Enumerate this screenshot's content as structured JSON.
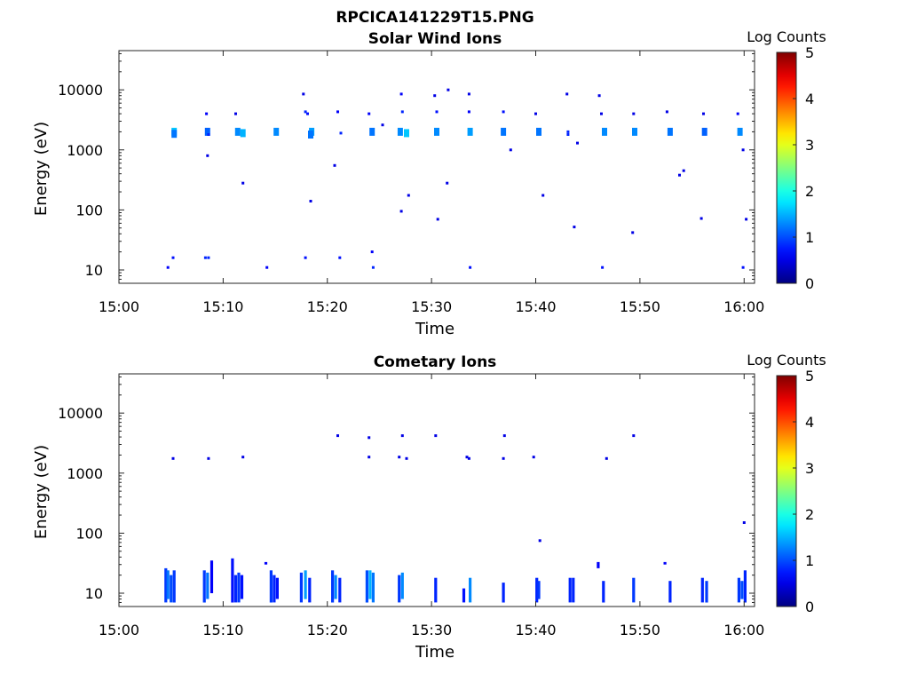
{
  "figure_title": "RPCICA141229T15.PNG",
  "colormap": "jet",
  "chart_data": [
    {
      "type": "heatmap",
      "title": "Solar Wind Ions",
      "xlabel": "Time",
      "ylabel": "Energy (eV)",
      "y_scale": "log",
      "xlim": [
        "15:00",
        "16:01"
      ],
      "ylim": [
        6,
        45000
      ],
      "x_ticks": [
        "15:00",
        "15:10",
        "15:20",
        "15:30",
        "15:40",
        "15:50",
        "16:00"
      ],
      "x_tick_minutes": [
        0,
        10,
        20,
        30,
        40,
        50,
        60
      ],
      "y_ticks": [
        "10",
        "100",
        "1000",
        "10000"
      ],
      "y_tick_values": [
        10,
        100,
        1000,
        10000
      ],
      "colorbar": {
        "label": "Log Counts",
        "ticks": [
          "0",
          "1",
          "2",
          "3",
          "4",
          "5"
        ],
        "range": [
          0,
          5
        ]
      },
      "points": [
        [
          5.3,
          2000,
          1.6
        ],
        [
          5.3,
          1850,
          1.2
        ],
        [
          8.5,
          2000,
          1.1
        ],
        [
          8.6,
          1800,
          0.8
        ],
        [
          8.4,
          4000,
          0.6
        ],
        [
          8.5,
          800,
          0.5
        ],
        [
          11.4,
          2000,
          1.3
        ],
        [
          11.9,
          1900,
          1.5
        ],
        [
          11.2,
          4000,
          0.5
        ],
        [
          11.9,
          280,
          0.5
        ],
        [
          15.1,
          2000,
          1.3
        ],
        [
          17.9,
          4300,
          0.8
        ],
        [
          18.1,
          4000,
          0.7
        ],
        [
          18.5,
          2000,
          1.4
        ],
        [
          18.4,
          1800,
          1.2
        ],
        [
          17.7,
          8500,
          0.5
        ],
        [
          18.4,
          140,
          0.5
        ],
        [
          20.7,
          550,
          0.5
        ],
        [
          21.0,
          4300,
          0.6
        ],
        [
          21.3,
          1900,
          0.8
        ],
        [
          24.0,
          4000,
          0.6
        ],
        [
          24.3,
          2000,
          1.2
        ],
        [
          25.3,
          2600,
          0.5
        ],
        [
          27.1,
          8500,
          0.6
        ],
        [
          27.2,
          4300,
          0.8
        ],
        [
          27.0,
          2000,
          1.3
        ],
        [
          27.6,
          1900,
          1.6
        ],
        [
          27.1,
          95,
          0.5
        ],
        [
          27.8,
          175,
          0.5
        ],
        [
          30.5,
          4300,
          0.7
        ],
        [
          30.5,
          2000,
          1.3
        ],
        [
          30.3,
          8000,
          0.5
        ],
        [
          31.6,
          10000,
          0.5
        ],
        [
          31.5,
          280,
          0.5
        ],
        [
          30.6,
          70,
          0.5
        ],
        [
          33.6,
          8500,
          0.5
        ],
        [
          33.6,
          4300,
          0.6
        ],
        [
          33.7,
          2000,
          1.4
        ],
        [
          36.9,
          4300,
          0.7
        ],
        [
          36.9,
          2000,
          1.2
        ],
        [
          37.6,
          1000,
          0.5
        ],
        [
          40.0,
          4000,
          0.5
        ],
        [
          40.3,
          2000,
          1.2
        ],
        [
          40.7,
          175,
          0.5
        ],
        [
          43.0,
          8500,
          0.5
        ],
        [
          43.1,
          2000,
          0.8
        ],
        [
          43.1,
          1800,
          0.8
        ],
        [
          44.0,
          1300,
          0.5
        ],
        [
          43.7,
          52,
          0.5
        ],
        [
          46.1,
          8000,
          0.5
        ],
        [
          46.3,
          4000,
          0.5
        ],
        [
          46.6,
          2000,
          1.3
        ],
        [
          49.3,
          42,
          0.5
        ],
        [
          49.4,
          4000,
          0.5
        ],
        [
          49.5,
          2000,
          1.3
        ],
        [
          52.6,
          4300,
          0.5
        ],
        [
          52.9,
          2000,
          1.2
        ],
        [
          53.8,
          380,
          0.5
        ],
        [
          54.2,
          450,
          0.5
        ],
        [
          56.1,
          4000,
          0.5
        ],
        [
          56.2,
          2000,
          1.1
        ],
        [
          55.9,
          72,
          0.5
        ],
        [
          59.4,
          4000,
          0.6
        ],
        [
          59.6,
          2000,
          1.3
        ],
        [
          59.9,
          1000,
          0.5
        ],
        [
          60.2,
          70,
          0.5
        ],
        [
          4.7,
          11,
          0.6
        ],
        [
          5.2,
          16,
          0.7
        ],
        [
          8.3,
          16,
          0.8
        ],
        [
          8.6,
          16,
          0.8
        ],
        [
          14.2,
          11,
          0.6
        ],
        [
          17.9,
          16,
          0.7
        ],
        [
          21.2,
          16,
          0.7
        ],
        [
          24.3,
          20,
          0.6
        ],
        [
          24.4,
          11,
          0.8
        ],
        [
          33.7,
          11,
          0.7
        ],
        [
          46.4,
          11,
          0.7
        ],
        [
          59.9,
          11,
          0.7
        ]
      ]
    },
    {
      "type": "heatmap",
      "title": "Cometary Ions",
      "xlabel": "Time",
      "ylabel": "Energy (eV)",
      "y_scale": "log",
      "xlim": [
        "15:00",
        "16:01"
      ],
      "ylim": [
        6,
        45000
      ],
      "x_ticks": [
        "15:00",
        "15:10",
        "15:20",
        "15:30",
        "15:40",
        "15:50",
        "16:00"
      ],
      "x_tick_minutes": [
        0,
        10,
        20,
        30,
        40,
        50,
        60
      ],
      "y_ticks": [
        "10",
        "100",
        "1000",
        "10000"
      ],
      "y_tick_values": [
        10,
        100,
        1000,
        10000
      ],
      "colorbar": {
        "label": "Log Counts",
        "ticks": [
          "0",
          "1",
          "2",
          "3",
          "4",
          "5"
        ],
        "range": [
          0,
          5
        ]
      },
      "points": [
        [
          5.2,
          1750,
          0.5
        ],
        [
          8.6,
          1750,
          0.5
        ],
        [
          11.9,
          1850,
          0.5
        ],
        [
          21.0,
          4200,
          0.5
        ],
        [
          24.0,
          3900,
          0.5
        ],
        [
          24.0,
          1850,
          0.5
        ],
        [
          27.2,
          4200,
          0.5
        ],
        [
          26.9,
          1850,
          0.5
        ],
        [
          27.6,
          1750,
          0.5
        ],
        [
          30.4,
          4200,
          0.5
        ],
        [
          33.4,
          1850,
          0.5
        ],
        [
          33.6,
          1750,
          0.5
        ],
        [
          37.0,
          4200,
          0.5
        ],
        [
          36.9,
          1750,
          0.5
        ],
        [
          39.8,
          1850,
          0.5
        ],
        [
          40.4,
          75,
          0.5
        ],
        [
          46.8,
          1750,
          0.5
        ],
        [
          49.4,
          4200,
          0.5
        ],
        [
          60.0,
          150,
          0.5
        ]
      ],
      "columns": [
        [
          4.5,
          7,
          26,
          0.9
        ],
        [
          4.7,
          8,
          24,
          1.2
        ],
        [
          5.0,
          7,
          20,
          1.0
        ],
        [
          5.3,
          7,
          24,
          0.9
        ],
        [
          8.2,
          7,
          24,
          0.9
        ],
        [
          8.5,
          8,
          22,
          1.2
        ],
        [
          8.9,
          10,
          35,
          0.6
        ],
        [
          10.9,
          7,
          38,
          0.7
        ],
        [
          11.2,
          7,
          20,
          0.8
        ],
        [
          11.5,
          7,
          22,
          0.9
        ],
        [
          11.8,
          8,
          20,
          0.7
        ],
        [
          14.1,
          30,
          33,
          0.6
        ],
        [
          14.6,
          7,
          24,
          0.9
        ],
        [
          14.9,
          7,
          20,
          0.8
        ],
        [
          15.2,
          8,
          18,
          0.7
        ],
        [
          17.5,
          7,
          22,
          0.9
        ],
        [
          17.9,
          8,
          24,
          1.4
        ],
        [
          18.3,
          7,
          18,
          0.8
        ],
        [
          20.5,
          7,
          24,
          0.9
        ],
        [
          20.8,
          8,
          20,
          1.3
        ],
        [
          21.2,
          7,
          18,
          0.8
        ],
        [
          23.8,
          7,
          24,
          1.0
        ],
        [
          24.1,
          8,
          24,
          1.5
        ],
        [
          24.4,
          7,
          22,
          1.2
        ],
        [
          26.9,
          7,
          20,
          0.9
        ],
        [
          27.2,
          8,
          22,
          1.3
        ],
        [
          30.4,
          7,
          18,
          0.8
        ],
        [
          33.1,
          7,
          12,
          0.7
        ],
        [
          33.7,
          7,
          18,
          1.3
        ],
        [
          36.9,
          7,
          15,
          0.8
        ],
        [
          40.1,
          7,
          18,
          0.8
        ],
        [
          40.3,
          8,
          16,
          0.9
        ],
        [
          43.3,
          7,
          18,
          0.8
        ],
        [
          43.6,
          7,
          18,
          0.8
        ],
        [
          46.0,
          26,
          33,
          0.6
        ],
        [
          46.5,
          7,
          16,
          0.8
        ],
        [
          49.4,
          7,
          18,
          0.9
        ],
        [
          52.4,
          30,
          33,
          0.6
        ],
        [
          52.9,
          7,
          16,
          0.8
        ],
        [
          56.0,
          7,
          18,
          0.8
        ],
        [
          56.4,
          7,
          16,
          0.9
        ],
        [
          59.5,
          7,
          18,
          0.9
        ],
        [
          59.8,
          8,
          16,
          1.0
        ],
        [
          60.1,
          7,
          24,
          0.8
        ]
      ]
    }
  ]
}
